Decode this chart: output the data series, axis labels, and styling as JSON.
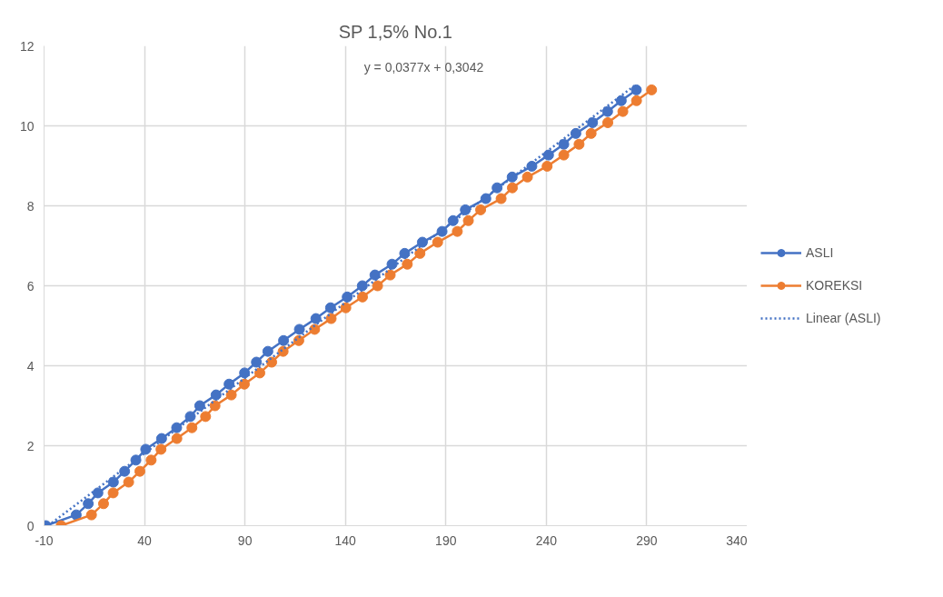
{
  "chart_data": {
    "type": "line",
    "title": "SP 1,5% No.1",
    "annotations": [
      "y = 0,0377x + 0,3042"
    ],
    "series": [
      {
        "name": "ASLI",
        "color": "#4472c4",
        "marker": "circle",
        "line_style": "solid",
        "x": [
          -9.1,
          6.0,
          12.0,
          16.8,
          24.5,
          30.1,
          35.7,
          40.6,
          48.5,
          56.0,
          62.8,
          67.5,
          75.6,
          82.1,
          89.8,
          95.7,
          101.4,
          109.2,
          117.1,
          125.3,
          132.6,
          140.9,
          148.4,
          154.7,
          163.2,
          169.5,
          178.3,
          188.1,
          193.6,
          199.7,
          209.9,
          215.5,
          223.0,
          232.8,
          241.1,
          248.7,
          254.7,
          263.0,
          270.5,
          277.3,
          284.8
        ],
        "values": [
          0,
          0.27,
          0.55,
          0.82,
          1.09,
          1.36,
          1.64,
          1.91,
          2.18,
          2.45,
          2.73,
          3.0,
          3.27,
          3.54,
          3.82,
          4.09,
          4.36,
          4.63,
          4.91,
          5.18,
          5.45,
          5.72,
          6.0,
          6.27,
          6.54,
          6.81,
          7.09,
          7.36,
          7.63,
          7.9,
          8.18,
          8.45,
          8.72,
          8.99,
          9.27,
          9.54,
          9.81,
          10.08,
          10.36,
          10.63,
          10.9
        ]
      },
      {
        "name": "KOREKSI",
        "color": "#ed7d31",
        "marker": "circle",
        "line_style": "solid",
        "x": [
          -1.5,
          13.6,
          19.6,
          24.4,
          32.1,
          37.7,
          43.3,
          48.2,
          56.1,
          63.6,
          70.4,
          75.1,
          83.2,
          89.7,
          97.4,
          103.3,
          109.0,
          116.8,
          124.7,
          132.9,
          140.2,
          148.5,
          156.0,
          162.3,
          170.8,
          177.1,
          185.9,
          195.7,
          201.2,
          207.3,
          217.5,
          223.1,
          230.6,
          240.4,
          248.7,
          256.3,
          262.3,
          270.6,
          278.1,
          284.9,
          292.4
        ],
        "values": [
          0,
          0.27,
          0.55,
          0.82,
          1.09,
          1.36,
          1.64,
          1.91,
          2.18,
          2.45,
          2.73,
          3.0,
          3.27,
          3.54,
          3.82,
          4.09,
          4.36,
          4.63,
          4.91,
          5.18,
          5.45,
          5.72,
          6.0,
          6.27,
          6.54,
          6.81,
          7.09,
          7.36,
          7.63,
          7.9,
          8.18,
          8.45,
          8.72,
          8.99,
          9.27,
          9.54,
          9.81,
          10.08,
          10.36,
          10.63,
          10.9
        ]
      },
      {
        "name": "Linear (ASLI)",
        "color": "#4472c4",
        "marker": "none",
        "line_style": "dotted",
        "x": [
          -8.0,
          284.8
        ],
        "values": [
          0.0,
          11.04
        ]
      }
    ],
    "xlim": [
      -10,
      340
    ],
    "xticks": [
      -10,
      40,
      90,
      140,
      190,
      240,
      290,
      340
    ],
    "ylim": [
      0,
      12
    ],
    "yticks": [
      0,
      2,
      4,
      6,
      8,
      10,
      12
    ],
    "grid": true,
    "legend": "right"
  }
}
